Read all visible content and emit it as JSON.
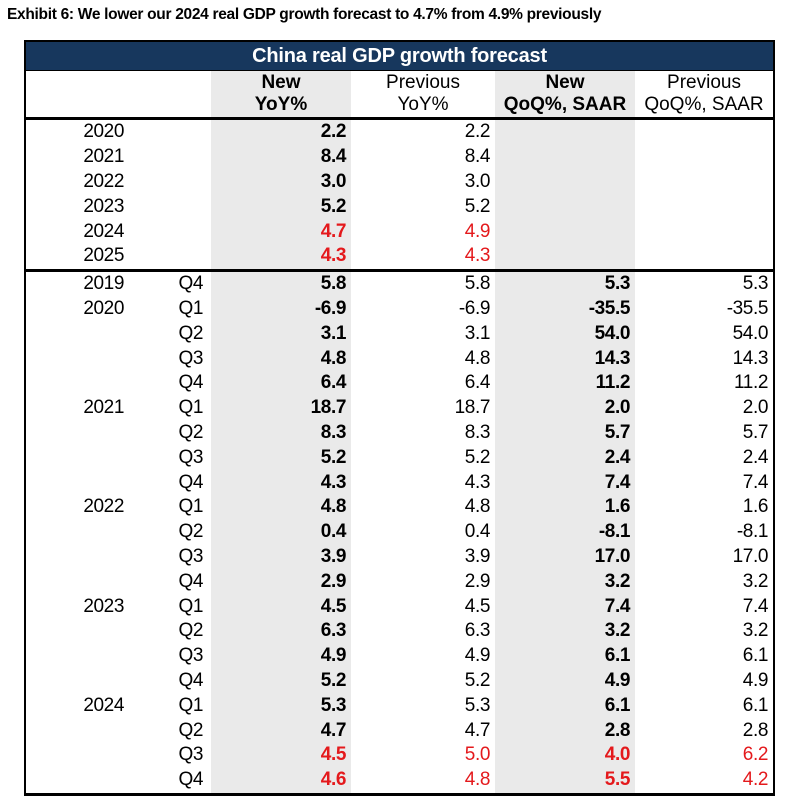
{
  "exhibit_title": "Exhibit 6: We lower our 2024 real GDP growth forecast to 4.7% from 4.9% previously",
  "table": {
    "title": "China real GDP growth forecast",
    "columns": [
      {
        "line1": "New",
        "line2": "YoY%",
        "emphasis": "bold-shaded"
      },
      {
        "line1": "Previous",
        "line2": "YoY%",
        "emphasis": "regular"
      },
      {
        "line1": "New",
        "line2": "QoQ%, SAAR",
        "emphasis": "bold-shaded"
      },
      {
        "line1": "Previous",
        "line2": "QoQ%, SAAR",
        "emphasis": "regular"
      }
    ]
  },
  "colors": {
    "title_bar_bg": "#17375d",
    "title_bar_text": "#ffffff",
    "shaded_column_bg": "#eaeaea",
    "forecast_red": "#e4191c",
    "text_black": "#000000"
  },
  "chart_data": {
    "type": "table",
    "title": "China real GDP growth forecast",
    "column_groups": [
      "New YoY%",
      "Previous YoY%",
      "New QoQ%, SAAR",
      "Previous QoQ%, SAAR"
    ],
    "annual_rows": [
      {
        "year": "2020",
        "quarter": "",
        "new_yoy": "2.2",
        "prev_yoy": "2.2",
        "new_qoq": "",
        "prev_qoq": "",
        "red": false
      },
      {
        "year": "2021",
        "quarter": "",
        "new_yoy": "8.4",
        "prev_yoy": "8.4",
        "new_qoq": "",
        "prev_qoq": "",
        "red": false
      },
      {
        "year": "2022",
        "quarter": "",
        "new_yoy": "3.0",
        "prev_yoy": "3.0",
        "new_qoq": "",
        "prev_qoq": "",
        "red": false
      },
      {
        "year": "2023",
        "quarter": "",
        "new_yoy": "5.2",
        "prev_yoy": "5.2",
        "new_qoq": "",
        "prev_qoq": "",
        "red": false
      },
      {
        "year": "2024",
        "quarter": "",
        "new_yoy": "4.7",
        "prev_yoy": "4.9",
        "new_qoq": "",
        "prev_qoq": "",
        "red": true
      },
      {
        "year": "2025",
        "quarter": "",
        "new_yoy": "4.3",
        "prev_yoy": "4.3",
        "new_qoq": "",
        "prev_qoq": "",
        "red": true
      }
    ],
    "quarterly_rows": [
      {
        "year": "2019",
        "quarter": "Q4",
        "new_yoy": "5.8",
        "prev_yoy": "5.8",
        "new_qoq": "5.3",
        "prev_qoq": "5.3",
        "red": false
      },
      {
        "year": "2020",
        "quarter": "Q1",
        "new_yoy": "-6.9",
        "prev_yoy": "-6.9",
        "new_qoq": "-35.5",
        "prev_qoq": "-35.5",
        "red": false
      },
      {
        "year": "",
        "quarter": "Q2",
        "new_yoy": "3.1",
        "prev_yoy": "3.1",
        "new_qoq": "54.0",
        "prev_qoq": "54.0",
        "red": false
      },
      {
        "year": "",
        "quarter": "Q3",
        "new_yoy": "4.8",
        "prev_yoy": "4.8",
        "new_qoq": "14.3",
        "prev_qoq": "14.3",
        "red": false
      },
      {
        "year": "",
        "quarter": "Q4",
        "new_yoy": "6.4",
        "prev_yoy": "6.4",
        "new_qoq": "11.2",
        "prev_qoq": "11.2",
        "red": false
      },
      {
        "year": "2021",
        "quarter": "Q1",
        "new_yoy": "18.7",
        "prev_yoy": "18.7",
        "new_qoq": "2.0",
        "prev_qoq": "2.0",
        "red": false
      },
      {
        "year": "",
        "quarter": "Q2",
        "new_yoy": "8.3",
        "prev_yoy": "8.3",
        "new_qoq": "5.7",
        "prev_qoq": "5.7",
        "red": false
      },
      {
        "year": "",
        "quarter": "Q3",
        "new_yoy": "5.2",
        "prev_yoy": "5.2",
        "new_qoq": "2.4",
        "prev_qoq": "2.4",
        "red": false
      },
      {
        "year": "",
        "quarter": "Q4",
        "new_yoy": "4.3",
        "prev_yoy": "4.3",
        "new_qoq": "7.4",
        "prev_qoq": "7.4",
        "red": false
      },
      {
        "year": "2022",
        "quarter": "Q1",
        "new_yoy": "4.8",
        "prev_yoy": "4.8",
        "new_qoq": "1.6",
        "prev_qoq": "1.6",
        "red": false
      },
      {
        "year": "",
        "quarter": "Q2",
        "new_yoy": "0.4",
        "prev_yoy": "0.4",
        "new_qoq": "-8.1",
        "prev_qoq": "-8.1",
        "red": false
      },
      {
        "year": "",
        "quarter": "Q3",
        "new_yoy": "3.9",
        "prev_yoy": "3.9",
        "new_qoq": "17.0",
        "prev_qoq": "17.0",
        "red": false
      },
      {
        "year": "",
        "quarter": "Q4",
        "new_yoy": "2.9",
        "prev_yoy": "2.9",
        "new_qoq": "3.2",
        "prev_qoq": "3.2",
        "red": false
      },
      {
        "year": "2023",
        "quarter": "Q1",
        "new_yoy": "4.5",
        "prev_yoy": "4.5",
        "new_qoq": "7.4",
        "prev_qoq": "7.4",
        "red": false
      },
      {
        "year": "",
        "quarter": "Q2",
        "new_yoy": "6.3",
        "prev_yoy": "6.3",
        "new_qoq": "3.2",
        "prev_qoq": "3.2",
        "red": false
      },
      {
        "year": "",
        "quarter": "Q3",
        "new_yoy": "4.9",
        "prev_yoy": "4.9",
        "new_qoq": "6.1",
        "prev_qoq": "6.1",
        "red": false
      },
      {
        "year": "",
        "quarter": "Q4",
        "new_yoy": "5.2",
        "prev_yoy": "5.2",
        "new_qoq": "4.9",
        "prev_qoq": "4.9",
        "red": false
      },
      {
        "year": "2024",
        "quarter": "Q1",
        "new_yoy": "5.3",
        "prev_yoy": "5.3",
        "new_qoq": "6.1",
        "prev_qoq": "6.1",
        "red": false
      },
      {
        "year": "",
        "quarter": "Q2",
        "new_yoy": "4.7",
        "prev_yoy": "4.7",
        "new_qoq": "2.8",
        "prev_qoq": "2.8",
        "red": false
      },
      {
        "year": "",
        "quarter": "Q3",
        "new_yoy": "4.5",
        "prev_yoy": "5.0",
        "new_qoq": "4.0",
        "prev_qoq": "6.2",
        "red": true
      },
      {
        "year": "",
        "quarter": "Q4",
        "new_yoy": "4.6",
        "prev_yoy": "4.8",
        "new_qoq": "5.5",
        "prev_qoq": "4.2",
        "red": true
      }
    ]
  }
}
